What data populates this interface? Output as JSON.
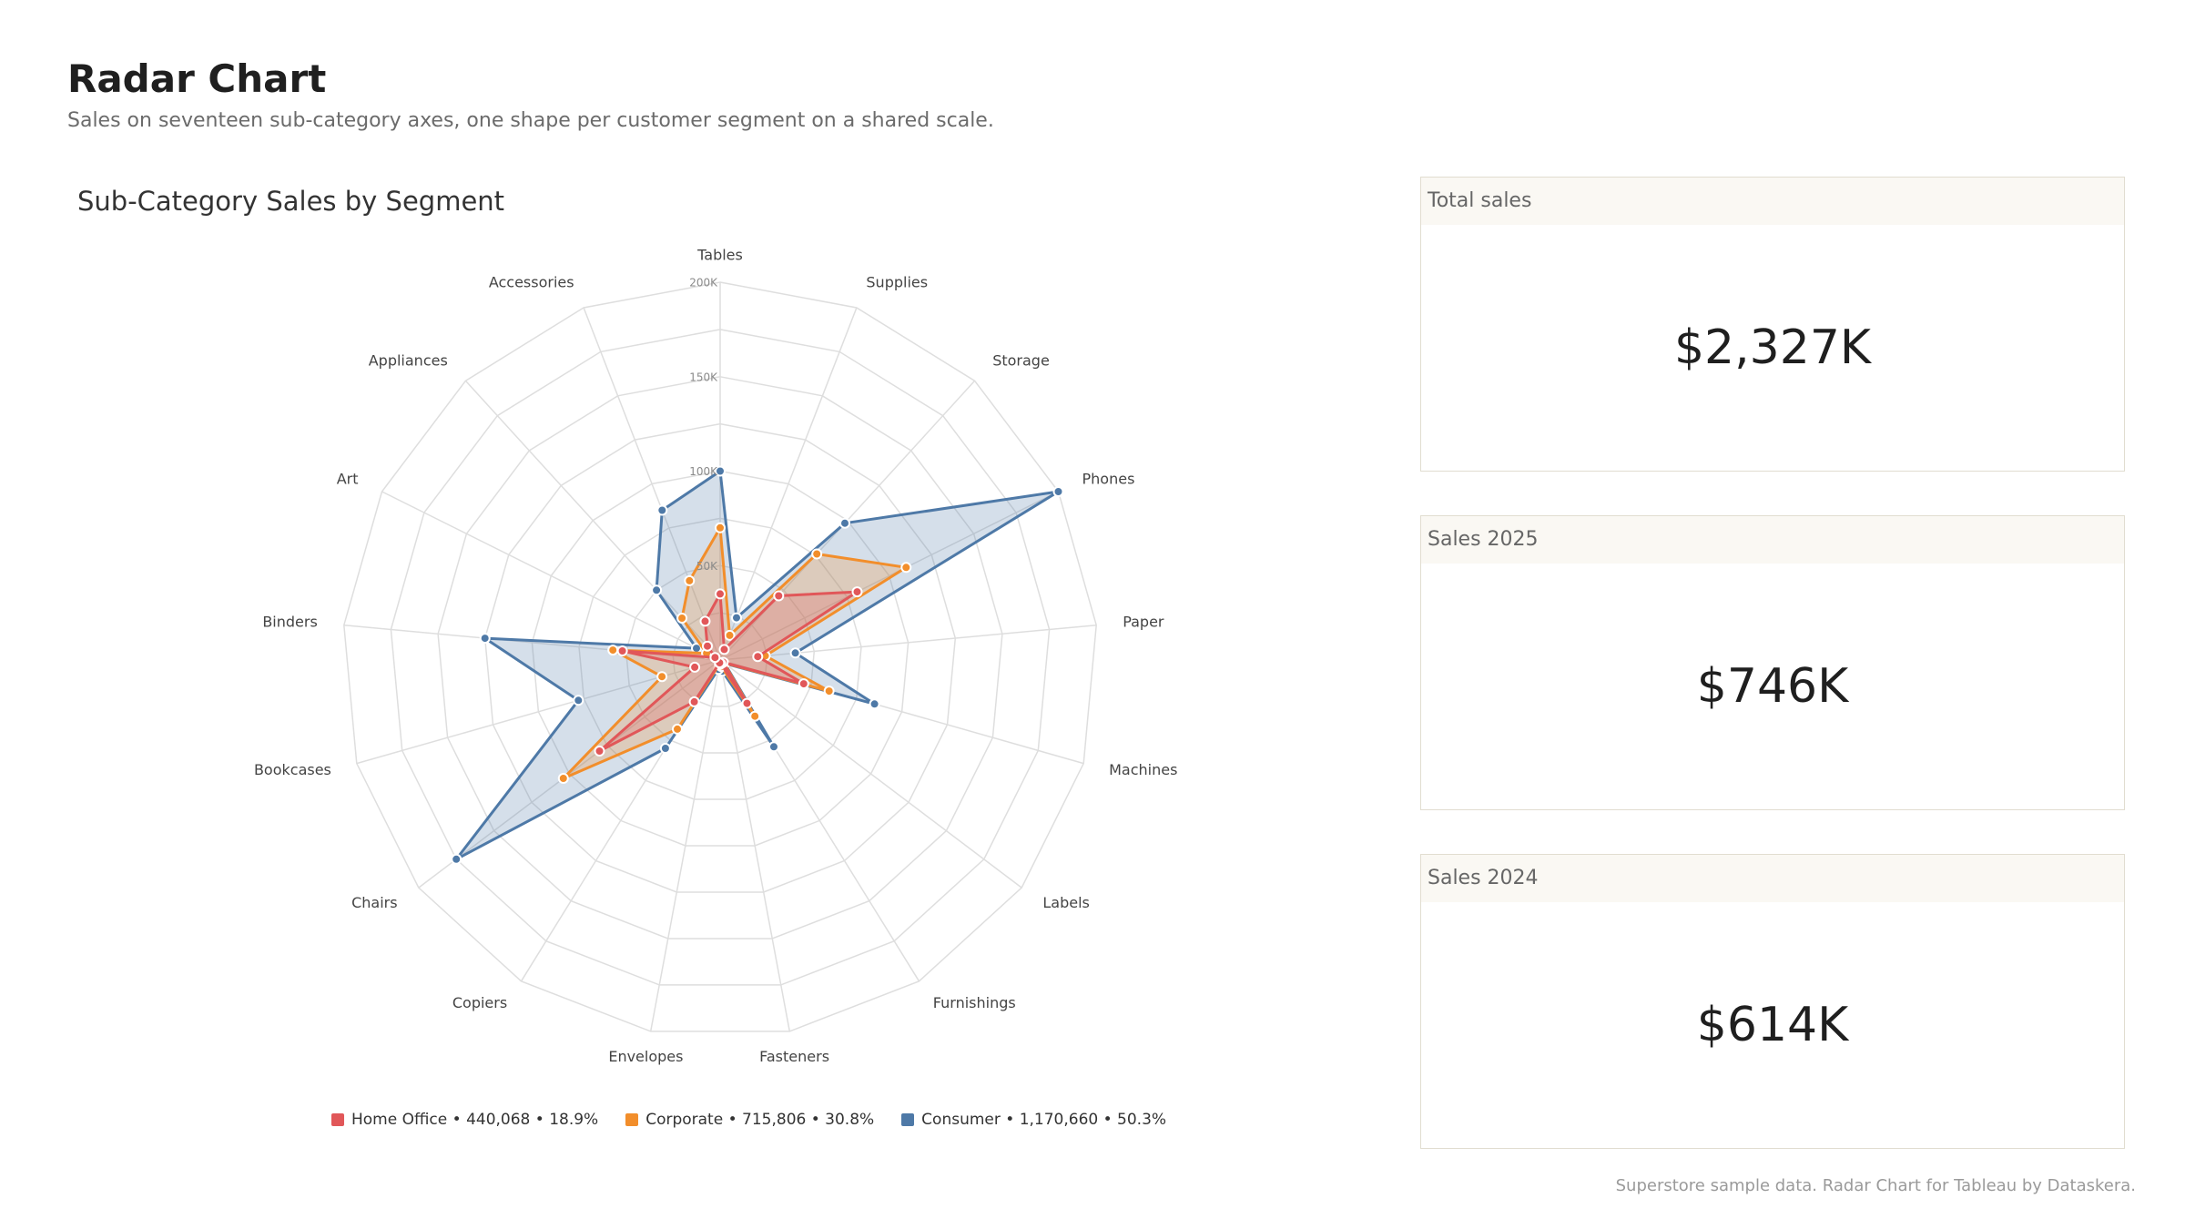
{
  "header": {
    "title": "Radar Chart",
    "subtitle": "Sales on seventeen sub-category axes, one shape per customer segment on a shared scale."
  },
  "chart_data": {
    "type": "radar",
    "title": "Sub-Category Sales by Segment",
    "axes": [
      "Tables",
      "Supplies",
      "Storage",
      "Phones",
      "Paper",
      "Machines",
      "Labels",
      "Furnishings",
      "Fasteners",
      "Envelopes",
      "Copiers",
      "Chairs",
      "Bookcases",
      "Binders",
      "Art",
      "Appliances",
      "Accessories"
    ],
    "rlim": [
      0,
      200000
    ],
    "ticks": [
      50000,
      100000,
      150000,
      200000
    ],
    "tick_labels": [
      "50K",
      "100K",
      "150K",
      "200K"
    ],
    "series": [
      {
        "name": "Consumer",
        "color": "#4e79a7",
        "legend_text": "Consumer • 1,170,660 • 50.3%",
        "values": [
          100000,
          24000,
          98000,
          200000,
          40000,
          85000,
          3000,
          54000,
          6000,
          5000,
          55000,
          175000,
          78000,
          125000,
          14000,
          50000,
          85000
        ]
      },
      {
        "name": "Corporate",
        "color": "#f28e2b",
        "legend_text": "Corporate • 715,806 • 30.8%",
        "values": [
          70000,
          14000,
          76000,
          110000,
          24000,
          60000,
          2500,
          35000,
          3500,
          2500,
          43000,
          104000,
          32000,
          57000,
          8000,
          30000,
          45000
        ]
      },
      {
        "name": "Home Office",
        "color": "#e15759",
        "legend_text": "Home Office • 440,068 • 18.9%",
        "values": [
          35000,
          6000,
          46000,
          81000,
          20000,
          46000,
          2000,
          27000,
          2000,
          1500,
          26000,
          80000,
          14000,
          52000,
          3000,
          10000,
          22000
        ]
      }
    ],
    "legend_order": [
      "Home Office",
      "Corporate",
      "Consumer"
    ],
    "legend_position": "bottom",
    "grid": true
  },
  "kpis": [
    {
      "label": "Total sales",
      "value": "$2,327K"
    },
    {
      "label": "Sales 2025",
      "value": "$746K"
    },
    {
      "label": "Sales 2024",
      "value": "$614K"
    }
  ],
  "footnote": "Superstore sample data. Radar Chart for Tableau by Dataskera."
}
